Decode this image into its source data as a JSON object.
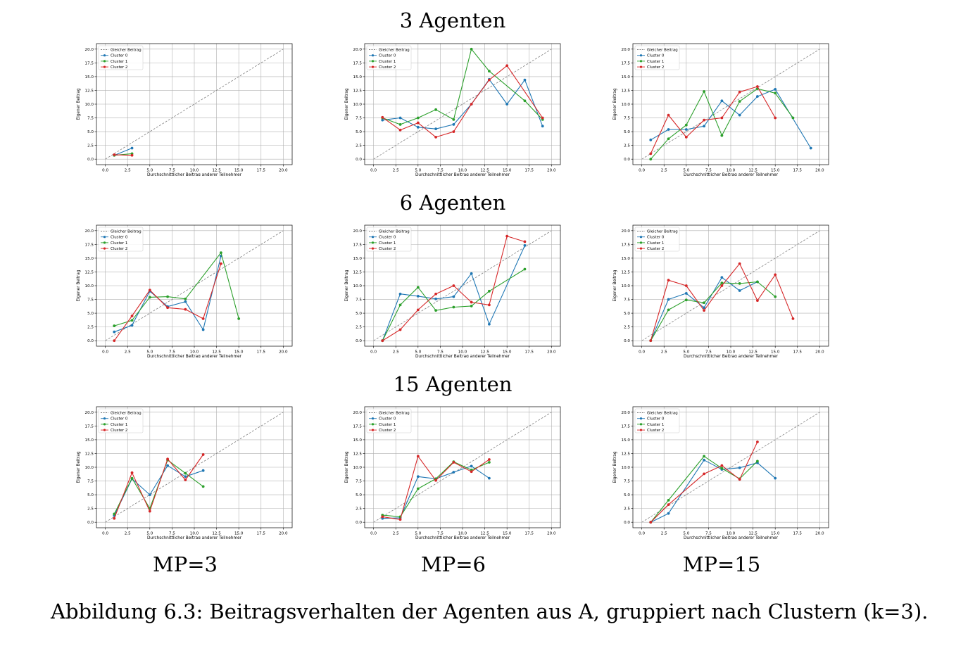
{
  "row_titles": [
    "3 Agenten",
    "6 Agenten",
    "15 Agenten"
  ],
  "column_labels": [
    "MP=3",
    "MP=6",
    "MP=15"
  ],
  "caption": "Abbildung 6.3: Beitragsverhalten der Agenten aus A, gruppiert nach Clustern (k=3).",
  "axis": {
    "xlabel": "Durchschnittlicher Beitrag anderer Teilnehmer",
    "ylabel": "Eigener Beitrag",
    "xlim": [
      -1,
      21
    ],
    "ylim": [
      -1,
      21
    ],
    "ticks": [
      0.0,
      2.5,
      5.0,
      7.5,
      10.0,
      12.5,
      15.0,
      17.5,
      20.0
    ],
    "tick_labels": [
      "0.0",
      "2.5",
      "5.0",
      "7.5",
      "10.0",
      "12.5",
      "15.0",
      "17.5",
      "20.0"
    ],
    "grid": true,
    "legend_position": "top-left"
  },
  "legend": [
    {
      "label": "Gleicher Beitrag",
      "color": "#808080",
      "style": "dashed"
    },
    {
      "label": "Cluster 0",
      "color": "#1f77b4",
      "style": "solid"
    },
    {
      "label": "Cluster 1",
      "color": "#2ca02c",
      "style": "solid"
    },
    {
      "label": "Cluster 2",
      "color": "#d62728",
      "style": "solid"
    }
  ],
  "chart_data": [
    {
      "type": "line",
      "agents": "3 Agenten",
      "mp": "MP=3",
      "reference": {
        "x": [
          0,
          20
        ],
        "y": [
          0,
          20
        ]
      },
      "series": [
        {
          "name": "Cluster 0",
          "x": [
            1,
            3
          ],
          "y": [
            0.7,
            2.0
          ]
        },
        {
          "name": "Cluster 1",
          "x": [
            1,
            3
          ],
          "y": [
            0.7,
            1.0
          ]
        },
        {
          "name": "Cluster 2",
          "x": [
            1,
            3
          ],
          "y": [
            0.8,
            0.7
          ]
        }
      ]
    },
    {
      "type": "line",
      "agents": "3 Agenten",
      "mp": "MP=6",
      "reference": {
        "x": [
          0,
          20
        ],
        "y": [
          0,
          20
        ]
      },
      "series": [
        {
          "name": "Cluster 0",
          "x": [
            1,
            3,
            5,
            7,
            9,
            11,
            13,
            15,
            17,
            19
          ],
          "y": [
            7.1,
            7.5,
            5.8,
            5.5,
            6.3,
            10.0,
            14.5,
            10.0,
            14.4,
            6.0
          ]
        },
        {
          "name": "Cluster 1",
          "x": [
            1,
            3,
            5,
            7,
            9,
            11,
            13,
            17,
            19
          ],
          "y": [
            7.5,
            6.3,
            7.5,
            9.0,
            7.2,
            20.0,
            16.0,
            10.6,
            7.2
          ]
        },
        {
          "name": "Cluster 2",
          "x": [
            1,
            3,
            5,
            7,
            9,
            11,
            13,
            15,
            19
          ],
          "y": [
            7.6,
            5.3,
            6.6,
            4.0,
            5.0,
            10.0,
            14.4,
            17.0,
            7.5
          ]
        }
      ]
    },
    {
      "type": "line",
      "agents": "3 Agenten",
      "mp": "MP=15",
      "reference": {
        "x": [
          0,
          20
        ],
        "y": [
          0,
          20
        ]
      },
      "series": [
        {
          "name": "Cluster 0",
          "x": [
            1,
            3,
            5,
            7,
            9,
            11,
            13,
            15,
            19
          ],
          "y": [
            3.5,
            5.4,
            5.4,
            6.0,
            10.6,
            8.0,
            11.4,
            12.7,
            2.0
          ]
        },
        {
          "name": "Cluster 1",
          "x": [
            1,
            3,
            5,
            7,
            9,
            11,
            13,
            15,
            17
          ],
          "y": [
            0.0,
            3.7,
            6.2,
            12.3,
            4.3,
            10.5,
            12.8,
            12.0,
            7.5
          ]
        },
        {
          "name": "Cluster 2",
          "x": [
            1,
            3,
            5,
            7,
            9,
            11,
            13,
            15
          ],
          "y": [
            1.0,
            8.0,
            4.0,
            7.1,
            7.5,
            12.2,
            13.2,
            7.5
          ]
        }
      ]
    },
    {
      "type": "line",
      "agents": "6 Agenten",
      "mp": "MP=3",
      "reference": {
        "x": [
          0,
          20
        ],
        "y": [
          0,
          20
        ]
      },
      "series": [
        {
          "name": "Cluster 0",
          "x": [
            1,
            3,
            5,
            7,
            9,
            11,
            13
          ],
          "y": [
            1.6,
            2.8,
            9.0,
            6.2,
            7.1,
            2.0,
            15.4
          ]
        },
        {
          "name": "Cluster 1",
          "x": [
            1,
            3,
            5,
            7,
            9,
            13,
            15
          ],
          "y": [
            2.7,
            3.7,
            7.9,
            8.0,
            7.6,
            16.0,
            4.0
          ]
        },
        {
          "name": "Cluster 2",
          "x": [
            1,
            3,
            5,
            7,
            9,
            11,
            13
          ],
          "y": [
            0.0,
            4.5,
            9.2,
            6.0,
            5.7,
            4.0,
            14.0
          ]
        }
      ]
    },
    {
      "type": "line",
      "agents": "6 Agenten",
      "mp": "MP=6",
      "reference": {
        "x": [
          0,
          20
        ],
        "y": [
          0,
          20
        ]
      },
      "series": [
        {
          "name": "Cluster 0",
          "x": [
            1,
            3,
            5,
            7,
            9,
            11,
            13,
            17
          ],
          "y": [
            0.0,
            8.5,
            8.1,
            7.6,
            8.0,
            12.2,
            3.0,
            17.3
          ]
        },
        {
          "name": "Cluster 1",
          "x": [
            1,
            3,
            5,
            7,
            9,
            11,
            13,
            17
          ],
          "y": [
            0.0,
            6.5,
            9.7,
            5.5,
            6.1,
            6.3,
            9.0,
            13.0
          ]
        },
        {
          "name": "Cluster 2",
          "x": [
            1,
            3,
            5,
            7,
            9,
            11,
            13,
            15,
            17
          ],
          "y": [
            0.0,
            2.0,
            5.6,
            8.5,
            10.0,
            7.0,
            6.5,
            19.0,
            18.0
          ]
        }
      ]
    },
    {
      "type": "line",
      "agents": "6 Agenten",
      "mp": "MP=15",
      "reference": {
        "x": [
          0,
          20
        ],
        "y": [
          0,
          20
        ]
      },
      "series": [
        {
          "name": "Cluster 0",
          "x": [
            1,
            3,
            5,
            7,
            9,
            11,
            13
          ],
          "y": [
            0.0,
            7.5,
            8.6,
            6.0,
            11.5,
            9.1,
            10.7
          ]
        },
        {
          "name": "Cluster 1",
          "x": [
            1,
            3,
            5,
            7,
            9,
            11,
            13,
            15
          ],
          "y": [
            0.0,
            5.6,
            7.4,
            6.9,
            10.5,
            10.4,
            10.7,
            8.0
          ]
        },
        {
          "name": "Cluster 2",
          "x": [
            1,
            3,
            5,
            7,
            9,
            11,
            13,
            15,
            17
          ],
          "y": [
            0.0,
            11.0,
            10.0,
            5.5,
            10.0,
            14.0,
            7.3,
            12.0,
            4.0
          ]
        }
      ]
    },
    {
      "type": "line",
      "agents": "15 Agenten",
      "mp": "MP=3",
      "reference": {
        "x": [
          0,
          20
        ],
        "y": [
          0,
          20
        ]
      },
      "series": [
        {
          "name": "Cluster 0",
          "x": [
            1,
            3,
            5,
            7,
            9,
            11
          ],
          "y": [
            1.2,
            7.9,
            5.0,
            10.3,
            8.3,
            9.4
          ]
        },
        {
          "name": "Cluster 1",
          "x": [
            1,
            3,
            5,
            7,
            9,
            11
          ],
          "y": [
            1.5,
            8.0,
            2.5,
            11.3,
            8.9,
            6.5
          ]
        },
        {
          "name": "Cluster 2",
          "x": [
            1,
            3,
            5,
            7,
            9,
            11
          ],
          "y": [
            0.7,
            9.0,
            2.0,
            11.5,
            7.7,
            12.3
          ]
        }
      ]
    },
    {
      "type": "line",
      "agents": "15 Agenten",
      "mp": "MP=6",
      "reference": {
        "x": [
          0,
          20
        ],
        "y": [
          0,
          20
        ]
      },
      "series": [
        {
          "name": "Cluster 0",
          "x": [
            1,
            3,
            5,
            7,
            9,
            11,
            13
          ],
          "y": [
            0.7,
            0.8,
            8.3,
            7.9,
            9.1,
            10.2,
            8.0
          ]
        },
        {
          "name": "Cluster 1",
          "x": [
            1,
            3,
            5,
            7,
            9,
            11,
            13
          ],
          "y": [
            1.3,
            1.0,
            6.1,
            7.9,
            11.0,
            9.5,
            10.9
          ]
        },
        {
          "name": "Cluster 2",
          "x": [
            1,
            3,
            5,
            7,
            9,
            11,
            13
          ],
          "y": [
            1.0,
            0.5,
            12.0,
            7.6,
            10.9,
            9.2,
            11.4
          ]
        }
      ]
    },
    {
      "type": "line",
      "agents": "15 Agenten",
      "mp": "MP=15",
      "reference": {
        "x": [
          0,
          20
        ],
        "y": [
          0,
          20
        ]
      },
      "series": [
        {
          "name": "Cluster 0",
          "x": [
            1,
            3,
            7,
            9,
            11,
            13,
            15
          ],
          "y": [
            0.0,
            1.6,
            11.3,
            9.6,
            9.9,
            10.8,
            8.0
          ]
        },
        {
          "name": "Cluster 1",
          "x": [
            1,
            3,
            7,
            9,
            11,
            13
          ],
          "y": [
            0.0,
            4.0,
            12.0,
            9.8,
            7.9,
            11.1
          ]
        },
        {
          "name": "Cluster 2",
          "x": [
            1,
            3,
            7,
            9,
            11,
            13
          ],
          "y": [
            0.0,
            3.2,
            8.8,
            10.3,
            7.8,
            14.6
          ]
        }
      ]
    }
  ]
}
